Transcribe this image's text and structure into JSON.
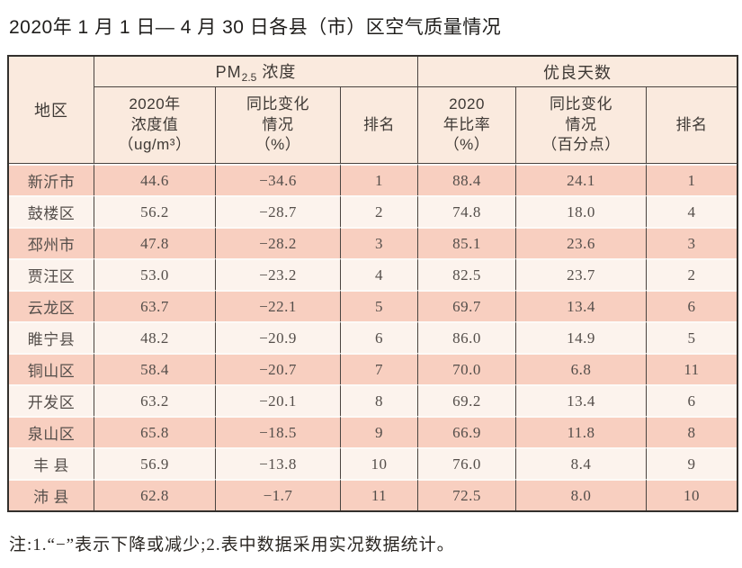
{
  "title": "2020年 1 月 1 日— 4 月 30 日各县（市）区空气质量情况",
  "table": {
    "corner_header": "地区",
    "groups": [
      {
        "label_prefix": "PM",
        "label_sub": "2.5",
        "label_suffix": " 浓度"
      },
      {
        "label": "优良天数"
      }
    ],
    "sub_headers": [
      "2020年\n浓度值\n（ug/m³）",
      "同比变化\n情况\n（%）",
      "排名",
      "2020\n年比率\n（%）",
      "同比变化\n情况\n（百分点）",
      "排名"
    ],
    "rows": [
      {
        "region": "新沂市",
        "pm25_value": "44.6",
        "pm25_change": "−34.6",
        "pm25_rank": "1",
        "good_rate": "88.4",
        "good_change": "24.1",
        "good_rank": "1"
      },
      {
        "region": "鼓楼区",
        "pm25_value": "56.2",
        "pm25_change": "−28.7",
        "pm25_rank": "2",
        "good_rate": "74.8",
        "good_change": "18.0",
        "good_rank": "4"
      },
      {
        "region": "邳州市",
        "pm25_value": "47.8",
        "pm25_change": "−28.2",
        "pm25_rank": "3",
        "good_rate": "85.1",
        "good_change": "23.6",
        "good_rank": "3"
      },
      {
        "region": "贾汪区",
        "pm25_value": "53.0",
        "pm25_change": "−23.2",
        "pm25_rank": "4",
        "good_rate": "82.5",
        "good_change": "23.7",
        "good_rank": "2"
      },
      {
        "region": "云龙区",
        "pm25_value": "63.7",
        "pm25_change": "−22.1",
        "pm25_rank": "5",
        "good_rate": "69.7",
        "good_change": "13.4",
        "good_rank": "6"
      },
      {
        "region": "睢宁县",
        "pm25_value": "48.2",
        "pm25_change": "−20.9",
        "pm25_rank": "6",
        "good_rate": "86.0",
        "good_change": "14.9",
        "good_rank": "5"
      },
      {
        "region": "铜山区",
        "pm25_value": "58.4",
        "pm25_change": "−20.7",
        "pm25_rank": "7",
        "good_rate": "70.0",
        "good_change": "6.8",
        "good_rank": "11"
      },
      {
        "region": "开发区",
        "pm25_value": "63.2",
        "pm25_change": "−20.1",
        "pm25_rank": "8",
        "good_rate": "69.2",
        "good_change": "13.4",
        "good_rank": "6"
      },
      {
        "region": "泉山区",
        "pm25_value": "65.8",
        "pm25_change": "−18.5",
        "pm25_rank": "9",
        "good_rate": "66.9",
        "good_change": "11.8",
        "good_rank": "8"
      },
      {
        "region": "丰 县",
        "pm25_value": "56.9",
        "pm25_change": "−13.8",
        "pm25_rank": "10",
        "good_rate": "76.0",
        "good_change": "8.4",
        "good_rank": "9"
      },
      {
        "region": "沛 县",
        "pm25_value": "62.8",
        "pm25_change": "−1.7",
        "pm25_rank": "11",
        "good_rate": "72.5",
        "good_change": "8.0",
        "good_rank": "10"
      }
    ]
  },
  "footnote": "注:1.“−”表示下降或减少;2.表中数据采用实况数据统计。",
  "colors": {
    "row_odd": "#f8cfc0",
    "row_even": "#fcf3ed",
    "header_bg": "#faeade",
    "border_outer": "#33302d",
    "border_inner": "#4a4440"
  }
}
